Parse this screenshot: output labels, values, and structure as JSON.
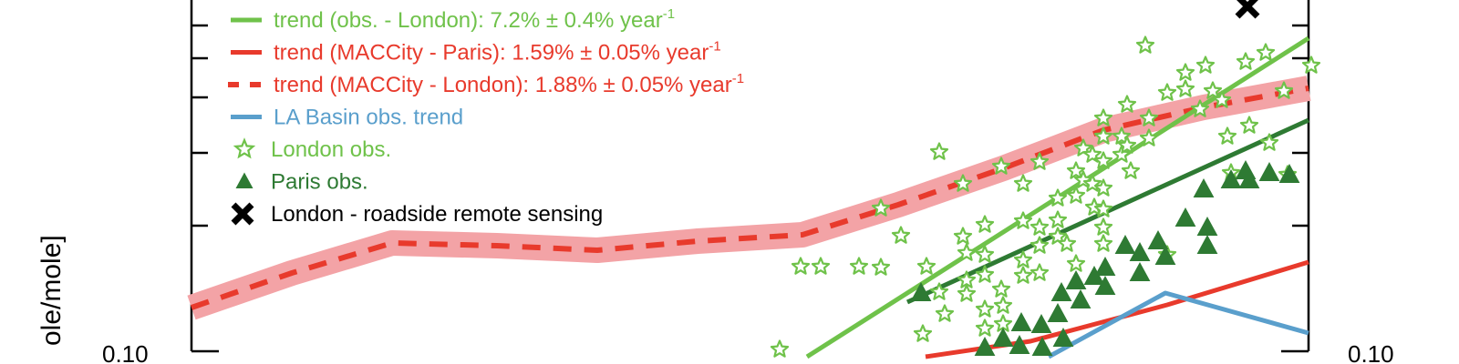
{
  "chart_data": {
    "type": "scatter",
    "x_scale": "linear",
    "y_scale": "log",
    "grid": false,
    "legend_position": "top-left",
    "ylabel": "ole/mole]",
    "ytick_labels": [
      "0.10",
      "0.10"
    ],
    "colors": {
      "obs_london": "#6fc24a",
      "paris": "#2e7a33",
      "maccity": "#e83a2c",
      "maccity_band": "#f3a3a6",
      "la_basin": "#5a9fcc",
      "remote_sensing": "#000000"
    },
    "legend": [
      {
        "key": "obs_london_trend",
        "label": "trend (obs. - London): 7.2% ± 0.4% year",
        "sup": "-1",
        "color": "#6fc24a",
        "marker": "line"
      },
      {
        "key": "maccity_paris",
        "label": "trend (MACCity - Paris): 1.59% ± 0.05% year",
        "sup": "-1",
        "color": "#e83a2c",
        "marker": "line"
      },
      {
        "key": "maccity_london",
        "label": "trend (MACCity - London): 1.88% ± 0.05% year",
        "sup": "-1",
        "color": "#e83a2c",
        "marker": "dashed"
      },
      {
        "key": "la_basin",
        "label": "LA Basin obs. trend",
        "sup": "",
        "color": "#5a9fcc",
        "marker": "line"
      },
      {
        "key": "london_obs",
        "label": "London obs.",
        "sup": "",
        "color": "#6fc24a",
        "marker": "star"
      },
      {
        "key": "paris_obs",
        "label": "Paris obs.",
        "sup": "",
        "color": "#2e7a33",
        "marker": "triangle"
      },
      {
        "key": "remote",
        "label": "London - roadside remote sensing",
        "sup": "",
        "color": "#000000",
        "marker": "cross"
      }
    ],
    "series": [
      {
        "key": "maccity_london",
        "style": "dashed-with-band",
        "points": [
          [
            210,
            338
          ],
          [
            320,
            300
          ],
          [
            430,
            267
          ],
          [
            545,
            270
          ],
          [
            655,
            275
          ],
          [
            765,
            265
          ],
          [
            880,
            258
          ],
          [
            985,
            225
          ],
          [
            1100,
            185
          ],
          [
            1210,
            143
          ],
          [
            1320,
            118
          ],
          [
            1435,
            97
          ]
        ],
        "band_half_width": 14
      },
      {
        "key": "maccity_paris",
        "style": "line",
        "points": [
          [
            1015,
            392
          ],
          [
            1130,
            375
          ],
          [
            1280,
            335
          ],
          [
            1435,
            288
          ]
        ]
      },
      {
        "key": "obs_london_trend",
        "style": "line",
        "points": [
          [
            885,
            392
          ],
          [
            1435,
            42
          ]
        ]
      },
      {
        "key": "paris_trend",
        "style": "line",
        "points": [
          [
            995,
            332
          ],
          [
            1435,
            132
          ]
        ]
      },
      {
        "key": "la_basin",
        "style": "line",
        "points": [
          [
            1150,
            392
          ],
          [
            1278,
            322
          ],
          [
            1435,
            366
          ]
        ]
      },
      {
        "key": "london_obs",
        "style": "star",
        "points": [
          [
            855,
            384
          ],
          [
            878,
            293
          ],
          [
            900,
            293
          ],
          [
            942,
            293
          ],
          [
            966,
            294
          ],
          [
            966,
            229
          ],
          [
            988,
            259
          ],
          [
            1016,
            293
          ],
          [
            1012,
            367
          ],
          [
            1030,
            167
          ],
          [
            1030,
            321
          ],
          [
            1036,
            345
          ],
          [
            1056,
            202
          ],
          [
            1056,
            260
          ],
          [
            1060,
            323
          ],
          [
            1060,
            278
          ],
          [
            1060,
            308
          ],
          [
            1080,
            247
          ],
          [
            1080,
            280
          ],
          [
            1080,
            302
          ],
          [
            1080,
            340
          ],
          [
            1080,
            361
          ],
          [
            1098,
            183
          ],
          [
            1098,
            318
          ],
          [
            1100,
            336
          ],
          [
            1100,
            356
          ],
          [
            1122,
            202
          ],
          [
            1122,
            243
          ],
          [
            1122,
            286
          ],
          [
            1122,
            303
          ],
          [
            1140,
            178
          ],
          [
            1140,
            250
          ],
          [
            1140,
            270
          ],
          [
            1140,
            300
          ],
          [
            1160,
            218
          ],
          [
            1160,
            242
          ],
          [
            1160,
            260
          ],
          [
            1170,
            268
          ],
          [
            1180,
            188
          ],
          [
            1180,
            215
          ],
          [
            1180,
            290
          ],
          [
            1188,
            163
          ],
          [
            1188,
            198
          ],
          [
            1198,
            170
          ],
          [
            1198,
            202
          ],
          [
            1200,
            228
          ],
          [
            1210,
            130
          ],
          [
            1210,
            150
          ],
          [
            1210,
            177
          ],
          [
            1210,
            207
          ],
          [
            1210,
            230
          ],
          [
            1210,
            250
          ],
          [
            1210,
            268
          ],
          [
            1230,
            150
          ],
          [
            1230,
            170
          ],
          [
            1236,
            115
          ],
          [
            1236,
            160
          ],
          [
            1240,
            188
          ],
          [
            1256,
            50
          ],
          [
            1260,
            130
          ],
          [
            1260,
            152
          ],
          [
            1280,
            102
          ],
          [
            1280,
            280
          ],
          [
            1300,
            80
          ],
          [
            1300,
            98
          ],
          [
            1316,
            120
          ],
          [
            1322,
            72
          ],
          [
            1330,
            100
          ],
          [
            1340,
            110
          ],
          [
            1346,
            150
          ],
          [
            1350,
            190
          ],
          [
            1366,
            68
          ],
          [
            1370,
            138
          ],
          [
            1388,
            58
          ],
          [
            1392,
            157
          ],
          [
            1408,
            100
          ],
          [
            1412,
            192
          ],
          [
            1438,
            72
          ]
        ]
      },
      {
        "key": "paris_obs",
        "style": "triangle",
        "points": [
          [
            1010,
            322
          ],
          [
            1080,
            382
          ],
          [
            1100,
            372
          ],
          [
            1118,
            380
          ],
          [
            1120,
            355
          ],
          [
            1142,
            357
          ],
          [
            1143,
            382
          ],
          [
            1160,
            345
          ],
          [
            1164,
            322
          ],
          [
            1166,
            372
          ],
          [
            1180,
            309
          ],
          [
            1185,
            330
          ],
          [
            1200,
            304
          ],
          [
            1212,
            294
          ],
          [
            1212,
            315
          ],
          [
            1234,
            270
          ],
          [
            1250,
            278
          ],
          [
            1250,
            300
          ],
          [
            1270,
            265
          ],
          [
            1278,
            282
          ],
          [
            1300,
            240
          ],
          [
            1320,
            208
          ],
          [
            1324,
            250
          ],
          [
            1324,
            270
          ],
          [
            1350,
            198
          ],
          [
            1366,
            188
          ],
          [
            1370,
            198
          ],
          [
            1392,
            190
          ],
          [
            1414,
            192
          ]
        ]
      },
      {
        "key": "remote",
        "style": "cross",
        "points": [
          [
            1368,
            7
          ]
        ]
      }
    ]
  }
}
